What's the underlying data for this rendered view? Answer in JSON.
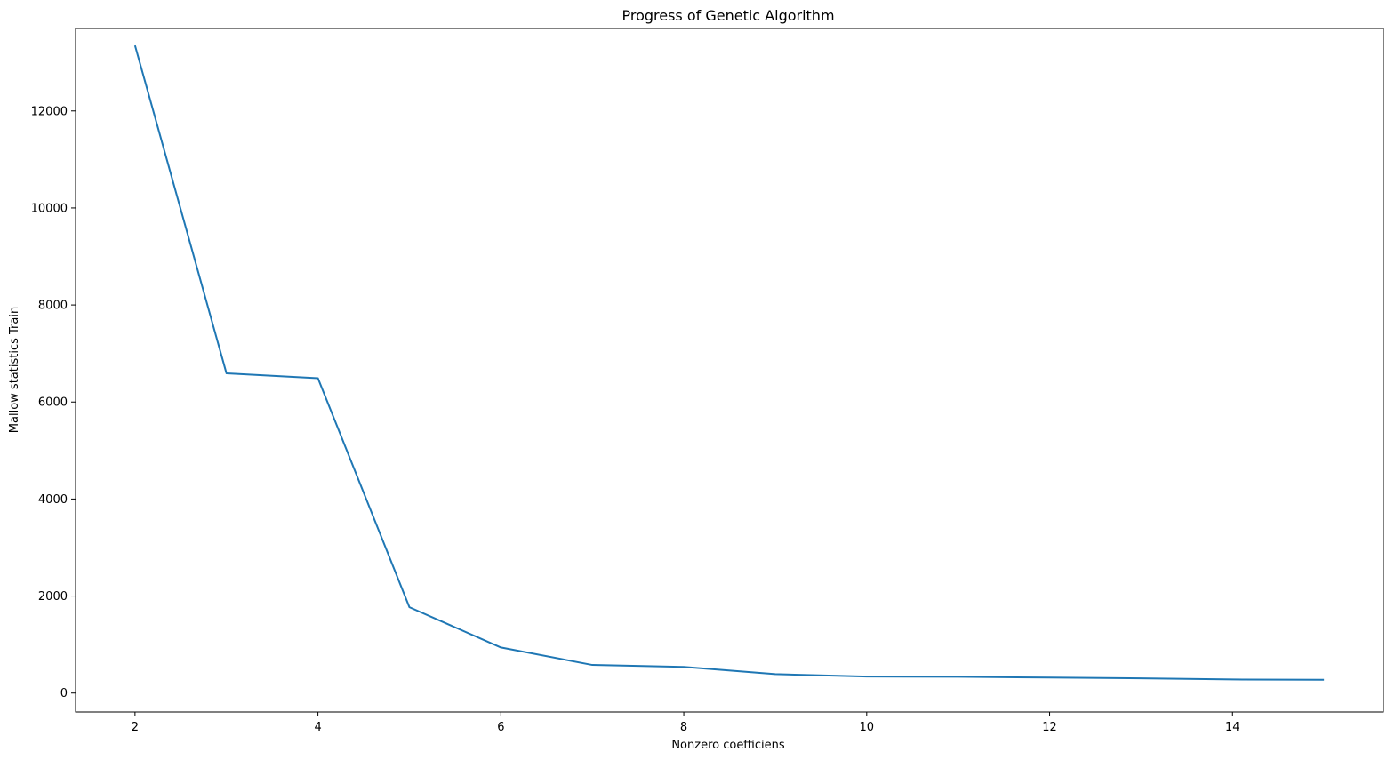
{
  "chart_data": {
    "type": "line",
    "title": "Progress of Genetic Algorithm",
    "xlabel": "Nonzero coefficiens",
    "ylabel": "Mallow statistics Train",
    "xlim": [
      1.35,
      15.65
    ],
    "ylim": [
      -390,
      13700
    ],
    "xticks": [
      2,
      4,
      6,
      8,
      10,
      12,
      14
    ],
    "yticks": [
      0,
      2000,
      4000,
      6000,
      8000,
      10000,
      12000
    ],
    "grid": false,
    "color": "#1f77b4",
    "series": [
      {
        "x": [
          2,
          3,
          4,
          5,
          6,
          7,
          8,
          9,
          10,
          11,
          12,
          13,
          14,
          15
        ],
        "values": [
          13350,
          6590,
          6490,
          1770,
          940,
          580,
          540,
          390,
          340,
          335,
          320,
          305,
          280,
          275
        ]
      }
    ]
  }
}
